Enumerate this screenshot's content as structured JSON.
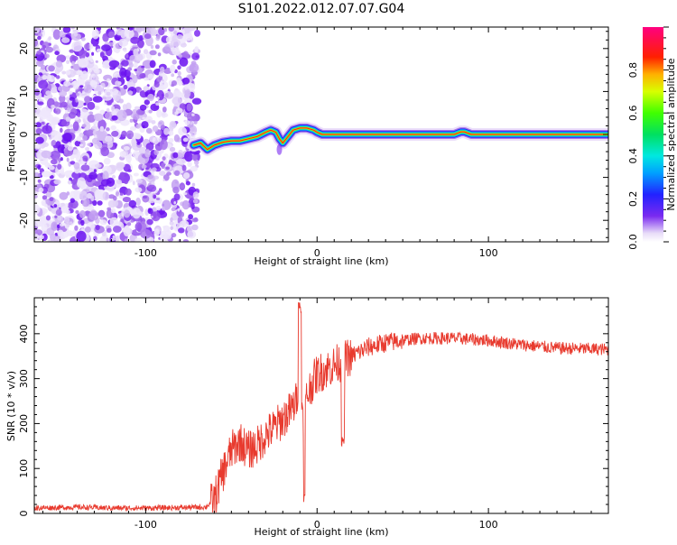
{
  "title": "S101.2022.012.07.07.G04",
  "chart_data": [
    {
      "type": "heatmap",
      "xlabel": "Height of straight line (km)",
      "ylabel": "Frequency (Hz)",
      "xlim": [
        -165,
        170
      ],
      "ylim": [
        -25,
        25
      ],
      "x_ticks": [
        -100,
        0,
        100
      ],
      "y_ticks": [
        -20,
        -10,
        0,
        10,
        20
      ],
      "noise_region_x": [
        -165,
        -72
      ],
      "signal_trace": {
        "x": [
          -72,
          -68,
          -64,
          -60,
          -55,
          -50,
          -45,
          -40,
          -35,
          -30,
          -27,
          -24,
          -22,
          -20,
          -17,
          -14,
          -10,
          -6,
          -2,
          0,
          3,
          8,
          20,
          40,
          60,
          80,
          84,
          86,
          90,
          110,
          130,
          150,
          170
        ],
        "y": [
          -2.5,
          -2.0,
          -3.5,
          -2.5,
          -1.8,
          -1.5,
          -1.5,
          -1.0,
          -0.5,
          0.5,
          1.0,
          0.5,
          -1.0,
          -2.0,
          -0.5,
          1.0,
          1.5,
          1.5,
          1.0,
          0.5,
          0.0,
          0.0,
          0.0,
          0.0,
          0.0,
          0.0,
          0.6,
          0.6,
          0.0,
          0.0,
          0.0,
          0.0,
          0.0
        ]
      },
      "colorbar": {
        "label": "Normalized spectral amplitude",
        "range": [
          0,
          1
        ],
        "ticks": [
          0.0,
          0.2,
          0.4,
          0.6,
          0.8
        ]
      }
    },
    {
      "type": "line",
      "xlabel": "Height of straight line (km)",
      "ylabel": "SNR (10 * v/v)",
      "xlim": [
        -165,
        170
      ],
      "ylim": [
        0,
        480
      ],
      "x_ticks": [
        -100,
        0,
        100
      ],
      "y_ticks": [
        0,
        100,
        200,
        300,
        400
      ],
      "series": [
        {
          "color": "#e83a2e",
          "x": [
            -165,
            -140,
            -120,
            -100,
            -80,
            -65,
            -60,
            -55,
            -50,
            -45,
            -40,
            -35,
            -30,
            -25,
            -20,
            -15,
            -12,
            -10,
            -8,
            -6,
            -3,
            0,
            5,
            10,
            15,
            20,
            30,
            40,
            50,
            60,
            80,
            100,
            120,
            140,
            170
          ],
          "y": [
            12,
            14,
            12,
            12,
            13,
            14,
            30,
            90,
            140,
            160,
            140,
            150,
            175,
            190,
            210,
            230,
            250,
            330,
            200,
            260,
            290,
            310,
            320,
            330,
            340,
            350,
            370,
            380,
            385,
            390,
            390,
            385,
            375,
            368,
            365
          ]
        }
      ]
    }
  ]
}
